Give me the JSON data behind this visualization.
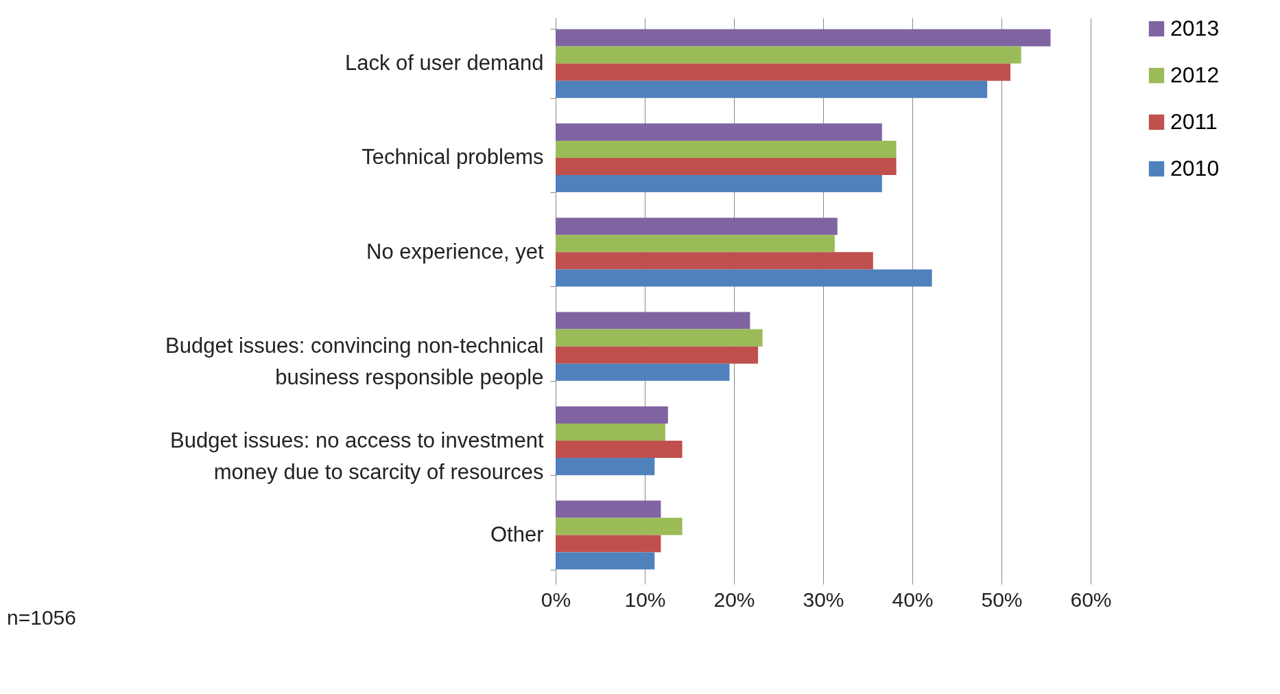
{
  "chart_data": {
    "type": "bar",
    "orientation": "horizontal",
    "categories": [
      "Lack of user demand",
      "Technical problems",
      "No experience, yet",
      "Budget issues: convincing non-technical business responsible people",
      "Budget issues: no access to investment money due to scarcity of resources",
      "Other"
    ],
    "series": [
      {
        "name": "2013",
        "color": "#8064a2",
        "values": [
          55.5,
          36.6,
          31.6,
          21.8,
          12.6,
          11.8
        ]
      },
      {
        "name": "2012",
        "color": "#9bbb59",
        "values": [
          52.2,
          38.2,
          31.3,
          23.2,
          12.3,
          14.2
        ]
      },
      {
        "name": "2011",
        "color": "#c0504d",
        "values": [
          51,
          38.2,
          35.6,
          22.7,
          14.2,
          11.8
        ]
      },
      {
        "name": "2010",
        "color": "#4f81bd",
        "values": [
          48.4,
          36.6,
          42.2,
          19.5,
          11.1,
          11.1
        ]
      }
    ],
    "xlim": [
      0,
      60
    ],
    "xticks": [
      {
        "value": 0,
        "label": "0%"
      },
      {
        "value": 10,
        "label": "10%"
      },
      {
        "value": 20,
        "label": "20%"
      },
      {
        "value": 30,
        "label": "30%"
      },
      {
        "value": 40,
        "label": "40%"
      },
      {
        "value": 50,
        "label": "50%"
      },
      {
        "value": 60,
        "label": "60%"
      }
    ],
    "grid": "x",
    "legend": "right",
    "annotations": [
      "n=1056"
    ]
  }
}
